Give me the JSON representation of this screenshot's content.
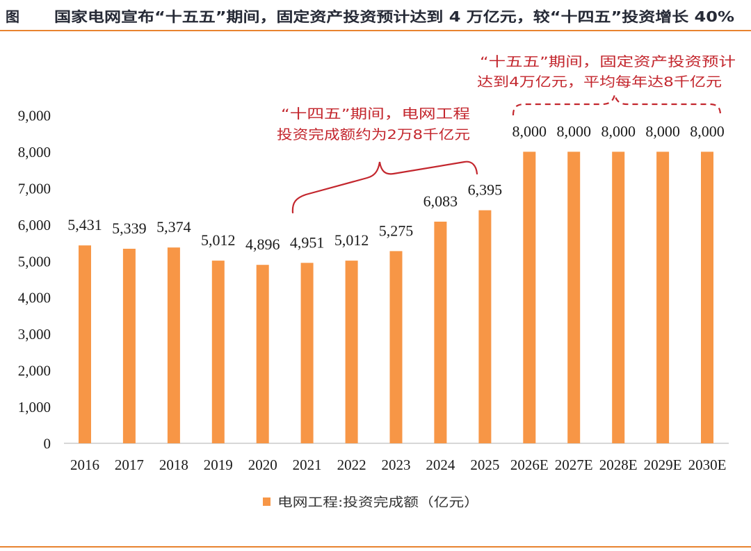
{
  "header": {
    "figure_label": "图",
    "title": "国家电网宣布“十五五”期间，固定资产投资预计达到 4 万亿元，较“十四五”投资增长 40%"
  },
  "colors": {
    "title": "#262a36",
    "rule": "#e8832f",
    "bar": "#f79646",
    "axis": "#bfbfbf",
    "annotation": "#c3262d",
    "text": "#1a1a1a"
  },
  "chart_data": {
    "type": "bar",
    "title": "",
    "xlabel": "",
    "ylabel": "",
    "categories": [
      "2016",
      "2017",
      "2018",
      "2019",
      "2020",
      "2021",
      "2022",
      "2023",
      "2024",
      "2025",
      "2026E",
      "2027E",
      "2028E",
      "2029E",
      "2030E"
    ],
    "series": [
      {
        "name": "电网工程:投资完成额（亿元）",
        "values": [
          5431,
          5339,
          5374,
          5012,
          4896,
          4951,
          5012,
          5275,
          6083,
          6395,
          8000,
          8000,
          8000,
          8000,
          8000
        ]
      }
    ],
    "ylim": [
      0,
      9000
    ],
    "y_ticks": [
      0,
      1000,
      2000,
      3000,
      4000,
      5000,
      6000,
      7000,
      8000,
      9000
    ],
    "data_labels_shown": true,
    "grid": false,
    "legend": "bottom-center",
    "annotations": {
      "fourteenth_plan": [
        "“十四五”期间，电网工程",
        "投资完成额约为2万8千亿元"
      ],
      "fifteenth_plan": [
        "“十五五”期间，固定资产投资预计",
        "达到4万亿元，平均每年达8千亿元"
      ]
    }
  }
}
